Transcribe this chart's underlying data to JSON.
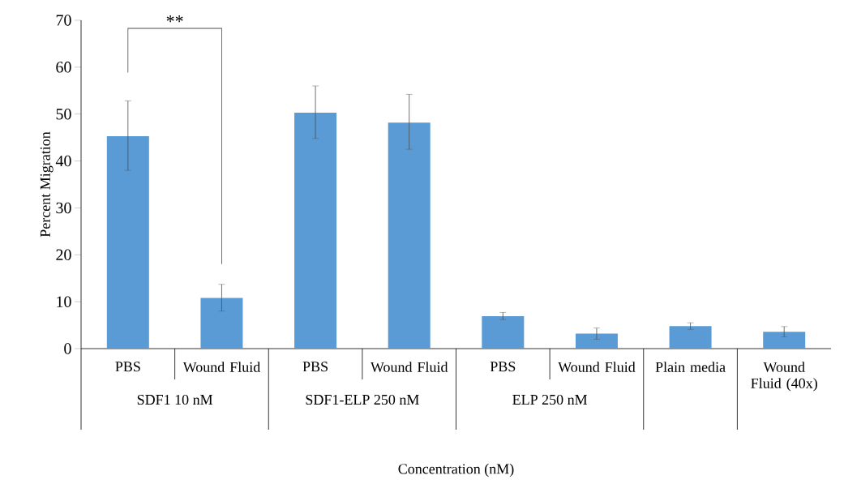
{
  "chart_data": {
    "type": "bar",
    "ylabel": "Percent Migration",
    "xlabel": "Concentration (nM)",
    "categories": [
      "PBS",
      "Wound Fluid",
      "PBS",
      "Wound Fluid",
      "PBS",
      "Wound Fluid",
      "Plain media",
      "Wound Fluid (40x)"
    ],
    "values": [
      45.3,
      10.8,
      50.3,
      48.2,
      6.9,
      3.2,
      4.8,
      3.6
    ],
    "errors": [
      [
        38.0,
        52.8
      ],
      [
        8.0,
        13.7
      ],
      [
        44.8,
        56.0
      ],
      [
        42.5,
        54.2
      ],
      [
        6.2,
        7.7
      ],
      [
        2.0,
        4.4
      ],
      [
        4.1,
        5.5
      ],
      [
        2.5,
        4.7
      ]
    ],
    "color": "#5b9bd5",
    "ylim": [
      0,
      70
    ],
    "yticks": [
      0,
      10,
      20,
      30,
      40,
      50,
      60,
      70
    ],
    "grid": false,
    "annotations": [
      "SDF1 10 nM",
      "SDF1-ELP 250 nM",
      "ELP 250 nM",
      "**"
    ]
  }
}
